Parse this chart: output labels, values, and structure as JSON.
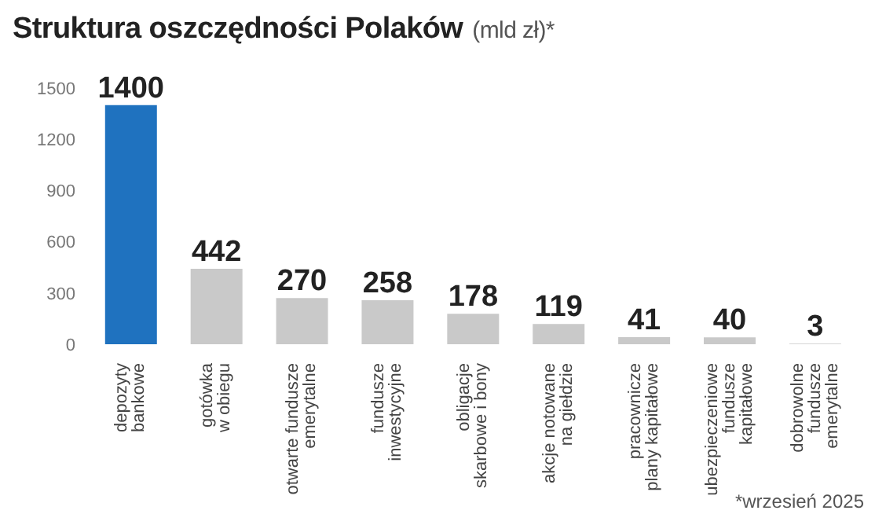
{
  "chart_data": {
    "type": "bar",
    "title": "Struktura oszczędności Polaków",
    "subtitle": "(mld zł)*",
    "categories": [
      "depozyty\nbankowe",
      "gotówka\nw obiegu",
      "otwarte fundusze\nemerytalne",
      "fundusze\ninwestycyjne",
      "obligacje\nskarbowe i bony",
      "akcje notowane\nna giełdzie",
      "pracownicze\nplany kapitałowe",
      "ubezpieczeniowe\nfundusze\nkapitałowe",
      "dobrowolne\nfundusze\nemerytalne"
    ],
    "values": [
      1400,
      442,
      270,
      258,
      178,
      119,
      41,
      40,
      3
    ],
    "colors": [
      "#1f72bf",
      "#c9c9c9",
      "#c9c9c9",
      "#c9c9c9",
      "#c9c9c9",
      "#c9c9c9",
      "#c9c9c9",
      "#c9c9c9",
      "#c9c9c9"
    ],
    "ylim": [
      0,
      1500
    ],
    "yticks": [
      0,
      300,
      600,
      900,
      1200,
      1500
    ],
    "data_labels": true,
    "annotations": [
      "*wrzesień 2025"
    ]
  }
}
